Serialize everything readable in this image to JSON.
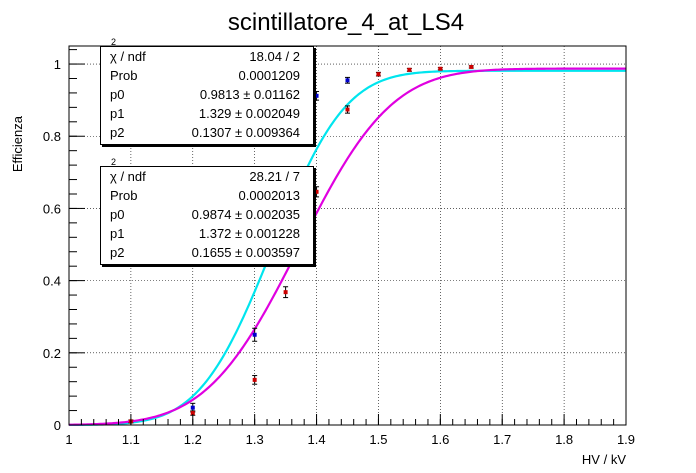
{
  "chart_data": {
    "type": "scatter",
    "title": "scintillatore_4_at_LS4",
    "xlabel": "HV / kV",
    "ylabel": "Efficienza",
    "xlim": [
      1.0,
      1.9
    ],
    "ylim": [
      0,
      1.05
    ],
    "grid": true,
    "x_ticks": [
      "1",
      "1.1",
      "1.2",
      "1.3",
      "1.4",
      "1.5",
      "1.6",
      "1.7",
      "1.8",
      "1.9"
    ],
    "y_ticks": [
      "0",
      "0.2",
      "0.4",
      "0.6",
      "0.8",
      "1"
    ],
    "series": [
      {
        "name": "blue data",
        "marker_color": "#0000cc",
        "points": [
          {
            "x": 1.2,
            "y": 0.048,
            "err": 0.012
          },
          {
            "x": 1.3,
            "y": 0.25,
            "err": 0.018
          },
          {
            "x": 1.4,
            "y": 0.912,
            "err": 0.012
          },
          {
            "x": 1.45,
            "y": 0.955,
            "err": 0.008
          }
        ],
        "fit_color": "#00e5ee",
        "fit": {
          "p0": 0.9813,
          "p1": 1.329,
          "p2": 0.1307
        }
      },
      {
        "name": "red data",
        "marker_color": "#cc0000",
        "points": [
          {
            "x": 1.1,
            "y": 0.01,
            "err": 0.004
          },
          {
            "x": 1.2,
            "y": 0.033,
            "err": 0.006
          },
          {
            "x": 1.3,
            "y": 0.125,
            "err": 0.012
          },
          {
            "x": 1.35,
            "y": 0.368,
            "err": 0.015
          },
          {
            "x": 1.4,
            "y": 0.646,
            "err": 0.014
          },
          {
            "x": 1.45,
            "y": 0.874,
            "err": 0.01
          },
          {
            "x": 1.5,
            "y": 0.972,
            "err": 0.005
          },
          {
            "x": 1.55,
            "y": 0.984,
            "err": 0.004
          },
          {
            "x": 1.6,
            "y": 0.987,
            "err": 0.003
          },
          {
            "x": 1.65,
            "y": 0.992,
            "err": 0.003
          }
        ],
        "fit_color": "#e000e0",
        "fit": {
          "p0": 0.9874,
          "p1": 1.372,
          "p2": 0.1655
        }
      }
    ]
  },
  "stats_boxes": [
    {
      "rows": [
        {
          "label": "χ",
          "sup": "2",
          "label_rest": " / ndf",
          "value": "18.04 / 2"
        },
        {
          "label": "Prob",
          "value": "0.0001209"
        },
        {
          "label": "p0",
          "value": "0.9813 ±  0.01162"
        },
        {
          "label": "p1",
          "value": "1.329 ±  0.002049"
        },
        {
          "label": "p2",
          "value": "0.1307 ±  0.009364"
        }
      ]
    },
    {
      "rows": [
        {
          "label": "χ",
          "sup": "2",
          "label_rest": " / ndf",
          "value": "28.21 / 7"
        },
        {
          "label": "Prob",
          "value": "0.0002013"
        },
        {
          "label": "p0",
          "value": "0.9874 ±  0.002035"
        },
        {
          "label": "p1",
          "value": "1.372 ±  0.001228"
        },
        {
          "label": "p2",
          "value": "0.1655 ±  0.003597"
        }
      ]
    }
  ]
}
